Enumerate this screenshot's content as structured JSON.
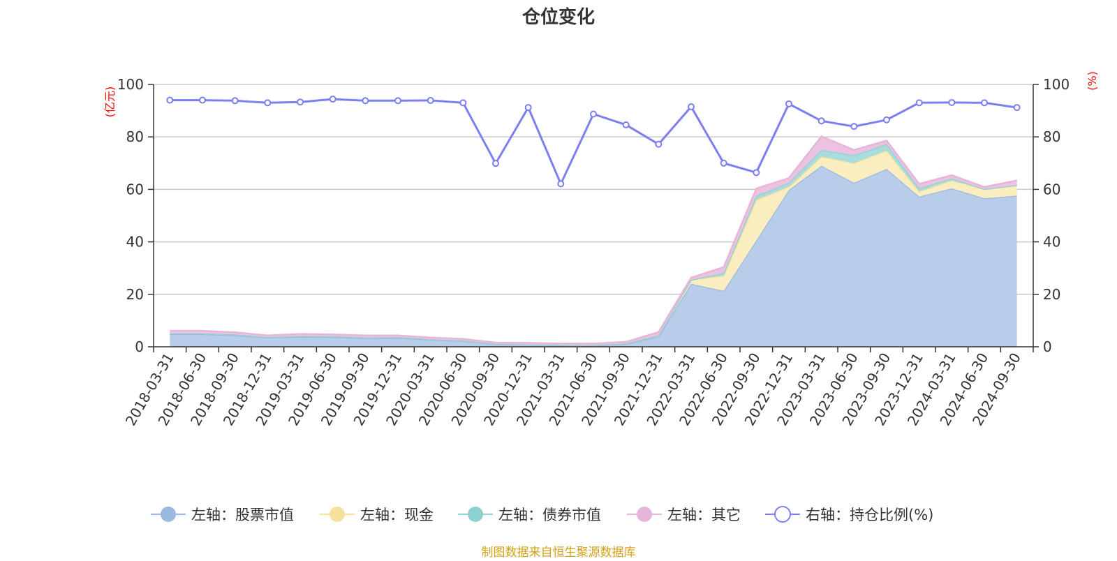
{
  "chart_data": {
    "type": "area",
    "title": "仓位变化",
    "footer": "制图数据来自恒生聚源数据库",
    "left_axis": {
      "unit": "(亿元)",
      "ylim": [
        0,
        100
      ],
      "ticks": [
        "0",
        "20",
        "40",
        "60",
        "80",
        "100"
      ]
    },
    "right_axis": {
      "unit": "(%)",
      "ylim": [
        0,
        100
      ],
      "ticks": [
        "0",
        "20",
        "40",
        "60",
        "80",
        "100"
      ]
    },
    "grid": true,
    "legend_position": "bottom",
    "categories": [
      "2018-03-31",
      "2018-06-30",
      "2018-09-30",
      "2018-12-31",
      "2019-03-31",
      "2019-06-30",
      "2019-09-30",
      "2019-12-31",
      "2020-03-31",
      "2020-06-30",
      "2020-09-30",
      "2020-12-31",
      "2021-03-31",
      "2021-06-30",
      "2021-09-30",
      "2021-12-31",
      "2022-03-31",
      "2022-06-30",
      "2022-09-30",
      "2022-12-31",
      "2023-03-31",
      "2023-06-30",
      "2023-09-30",
      "2023-12-31",
      "2024-03-31",
      "2024-06-30",
      "2024-09-30"
    ],
    "series": [
      {
        "name": "左轴：股票市值",
        "axis": "left",
        "type": "area",
        "color": "#9bb8e0",
        "fill": "#b8cdea",
        "values": [
          4.8,
          4.8,
          4.4,
          3.5,
          3.8,
          3.7,
          3.3,
          3.4,
          2.7,
          2.2,
          1.0,
          0.8,
          0.6,
          0.5,
          1.1,
          3.9,
          24.0,
          21.3,
          40.5,
          59.8,
          69.0,
          62.5,
          67.8,
          57.2,
          60.4,
          56.6,
          57.6
        ]
      },
      {
        "name": "左轴：现金",
        "axis": "left",
        "type": "area",
        "color": "#f7e19a",
        "fill": "#faedbf",
        "values": [
          0.3,
          0.3,
          0.3,
          0.2,
          0.3,
          0.3,
          0.3,
          0.3,
          0.2,
          0.2,
          0.1,
          0.1,
          0.1,
          0.1,
          0.2,
          0.5,
          1.5,
          5.8,
          15.5,
          1.2,
          3.5,
          7.5,
          7.0,
          2.0,
          3.0,
          3.5,
          4.0
        ]
      },
      {
        "name": "左轴：债券市值",
        "axis": "left",
        "type": "area",
        "color": "#8ed1d2",
        "fill": "#a9dcdc",
        "values": [
          0,
          0,
          0,
          0,
          0,
          0,
          0,
          0,
          0,
          0,
          0,
          0,
          0,
          0,
          0,
          0,
          0,
          1.0,
          1.5,
          1.5,
          2.5,
          3.0,
          2.5,
          1.2,
          0.8,
          0,
          0
        ]
      },
      {
        "name": "左轴：其它",
        "axis": "left",
        "type": "area",
        "color": "#e6b5da",
        "fill": "#ebc3e0",
        "values": [
          1.0,
          1.0,
          0.8,
          0.6,
          0.8,
          0.7,
          0.7,
          0.6,
          0.6,
          0.6,
          0.5,
          0.6,
          0.5,
          0.6,
          0.6,
          1.2,
          0.8,
          2.3,
          2.8,
          1.8,
          5.2,
          2.0,
          1.3,
          1.7,
          1.2,
          0.8,
          1.8
        ]
      },
      {
        "name": "右轴：持仓比例(%)",
        "axis": "right",
        "type": "line",
        "color": "#7b7ff0",
        "values": [
          94.0,
          94.0,
          93.8,
          93.0,
          93.3,
          94.4,
          93.8,
          93.8,
          93.9,
          93.0,
          69.9,
          91.2,
          62.1,
          88.7,
          84.6,
          77.2,
          91.5,
          70.0,
          66.4,
          92.6,
          86.1,
          84.0,
          86.5,
          93.0,
          93.1,
          93.0,
          91.2
        ]
      }
    ]
  }
}
